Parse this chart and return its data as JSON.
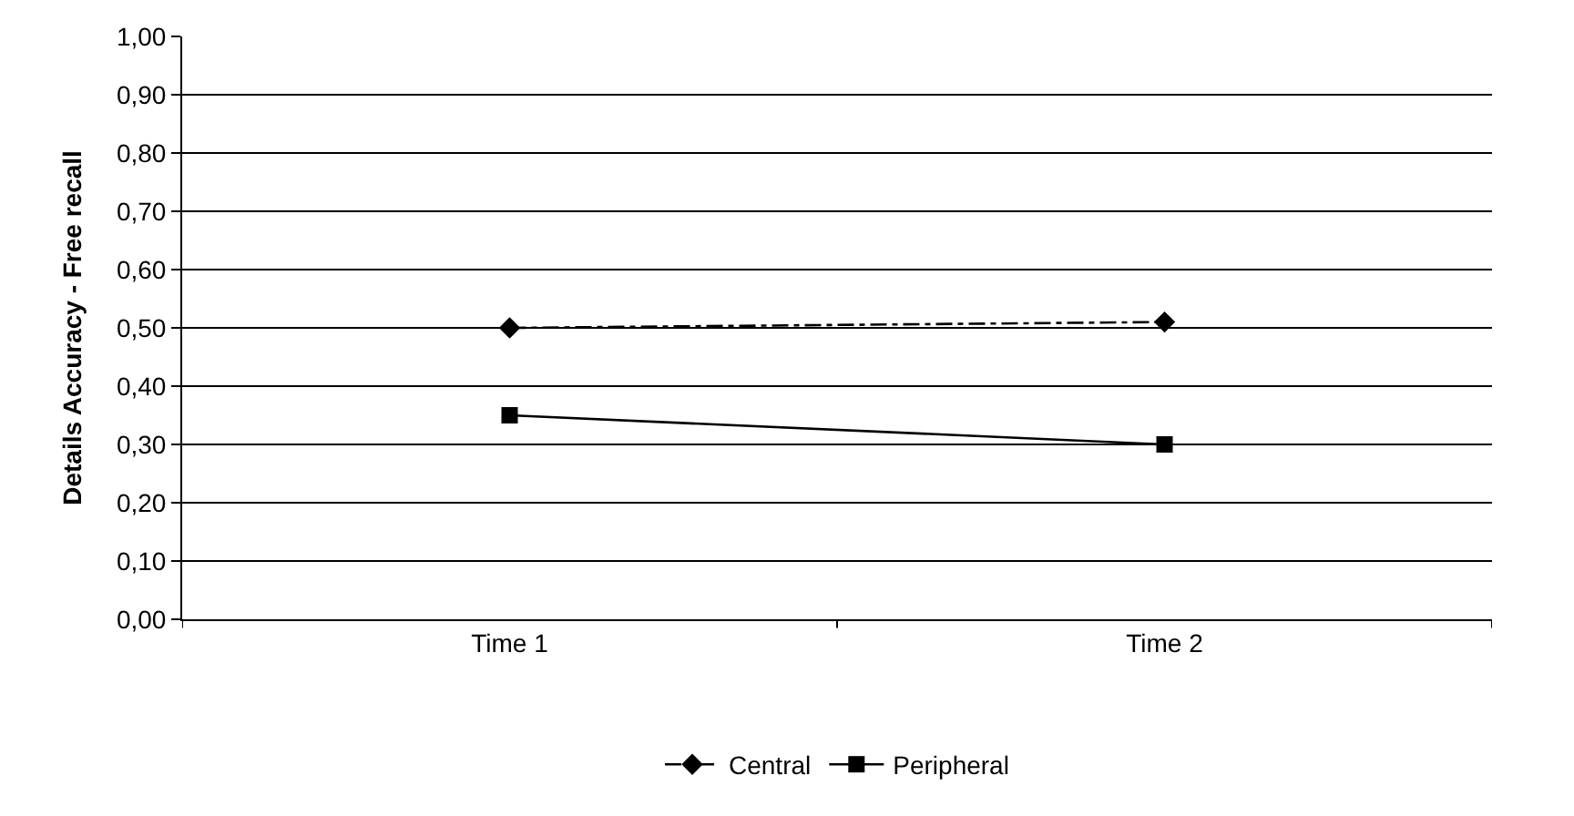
{
  "chart_data": {
    "type": "line",
    "ylabel": "Details Accuracy - Free recall",
    "categories": [
      "Time 1",
      "Time 2"
    ],
    "series": [
      {
        "name": "Central",
        "color": "#000000",
        "values": [
          0.5,
          0.51
        ],
        "marker": "diamond",
        "line_style": "dashdot"
      },
      {
        "name": "Peripheral",
        "color": "#000000",
        "values": [
          0.35,
          0.3
        ],
        "marker": "square",
        "line_style": "solid"
      }
    ],
    "ylim": [
      0,
      1
    ],
    "yticks": [
      {
        "value": 0,
        "label": "0,00"
      },
      {
        "value": 0.1,
        "label": "0,10"
      },
      {
        "value": 0.2,
        "label": "0,20"
      },
      {
        "value": 0.3,
        "label": "0,30"
      },
      {
        "value": 0.4,
        "label": "0,40"
      },
      {
        "value": 0.5,
        "label": "0,50"
      },
      {
        "value": 0.6,
        "label": "0,60"
      },
      {
        "value": 0.7,
        "label": "0,70"
      },
      {
        "value": 0.8,
        "label": "0,80"
      },
      {
        "value": 0.9,
        "label": "0,90"
      },
      {
        "value": 1,
        "label": "1,00"
      }
    ],
    "grid": "y",
    "legend": "bottom"
  }
}
